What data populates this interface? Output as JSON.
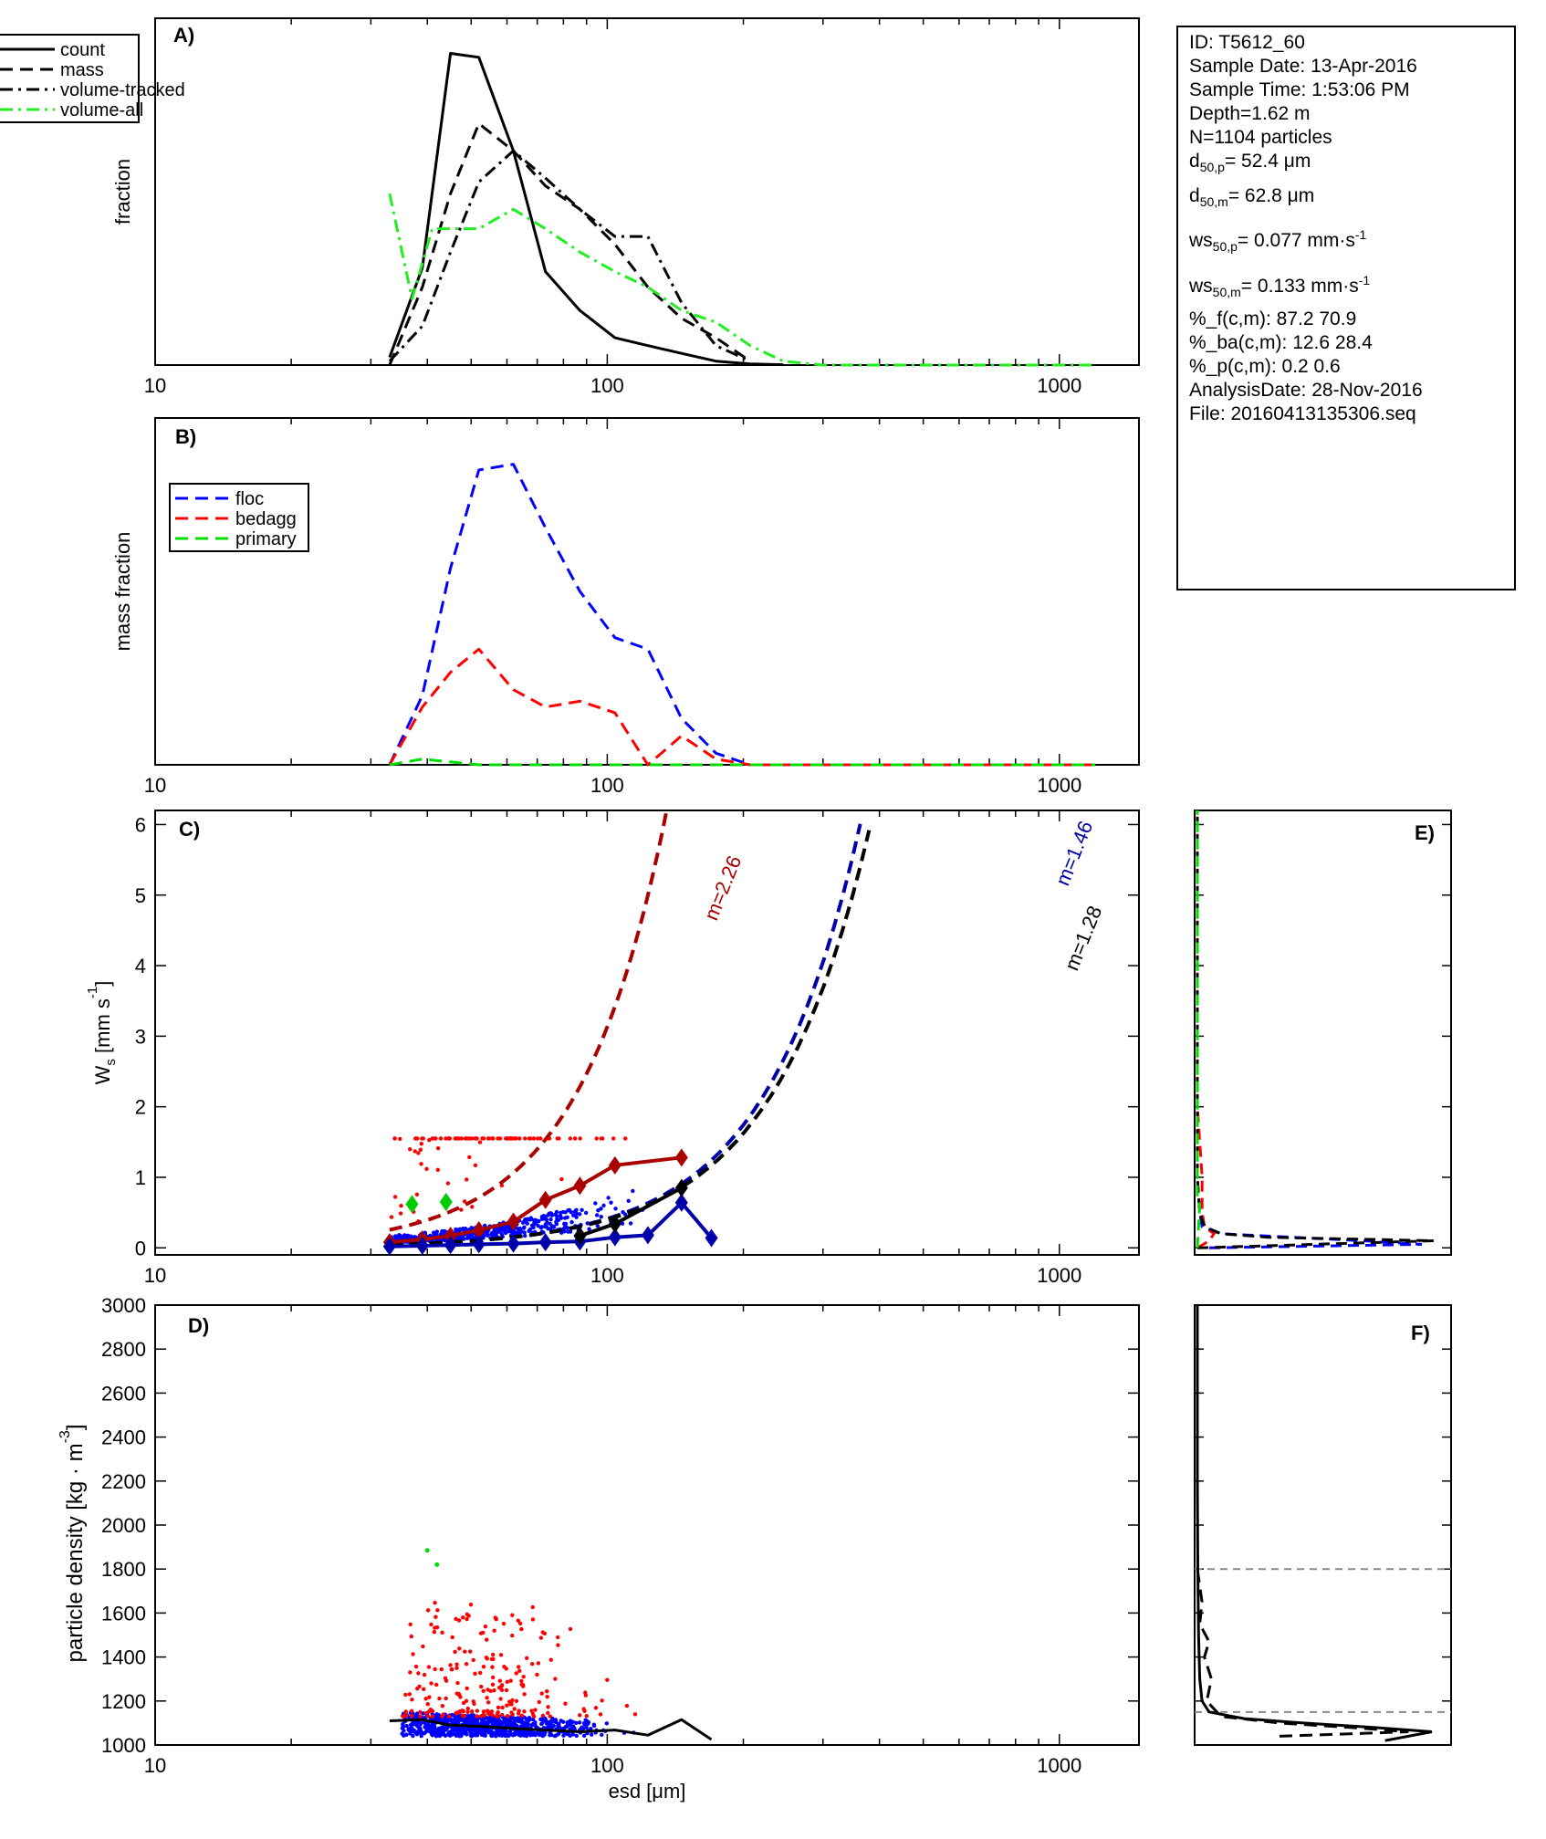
{
  "info_box": {
    "id": "ID: T5612_60",
    "sample_date": "Sample Date: 13-Apr-2016",
    "sample_time": "Sample Time:  1:53:06 PM",
    "depth": "Depth=1.62 m",
    "n": "N=1104 particles",
    "d50p_label": "d",
    "d50p_sub": "50,p",
    "d50p_value": "=  52.4 μm",
    "d50m_label": "d",
    "d50m_sub": "50,m",
    "d50m_value": "=  62.8 μm",
    "ws50p_label": "ws",
    "ws50p_sub": "50,p",
    "ws50p_value": "= 0.077 mm·s",
    "ws50p_sup": "-1",
    "ws50m_label": "ws",
    "ws50m_sub": "50,m",
    "ws50m_value": "= 0.133 mm·s",
    "ws50m_sup": "-1",
    "pct_f": "%_f(c,m): 87.2 70.9",
    "pct_ba": "%_ba(c,m): 12.6 28.4",
    "pct_p": "%_p(c,m): 0.2 0.6",
    "analysis_date": "AnalysisDate: 28-Nov-2016",
    "file": "File: 20160413135306.seq"
  },
  "colors": {
    "axis": "#000000",
    "floc": "#0000ff",
    "bedagg": "#ff0000",
    "primary": "#00dd00",
    "floc_dark": "#0000aa",
    "bedagg_dark": "#aa0000",
    "volume_all": "#22ee22",
    "ref_line": "#888888"
  },
  "chart_data": [
    {
      "panel": "A)",
      "type": "line",
      "ylabel": "fraction",
      "xscale": "log",
      "xlim": [
        10,
        1500
      ],
      "xticks": [
        "10",
        "100",
        "1000"
      ],
      "legend": [
        "count",
        "mass",
        "volume-tracked",
        "volume-all"
      ],
      "legend_position": "top-left",
      "series": [
        {
          "name": "count",
          "style": "solid",
          "color": "#000000",
          "x": [
            33,
            39,
            45,
            52,
            62,
            73,
            87,
            104,
            123,
            146,
            174,
            207,
            245
          ],
          "y": [
            0.02,
            0.25,
            0.8,
            0.79,
            0.55,
            0.24,
            0.14,
            0.07,
            0.05,
            0.03,
            0.01,
            0.003,
            0.001
          ]
        },
        {
          "name": "mass",
          "style": "dashed",
          "color": "#000000",
          "x": [
            33,
            39,
            45,
            52,
            62,
            73,
            87,
            104,
            123,
            146,
            174,
            207
          ],
          "y": [
            0.0,
            0.2,
            0.44,
            0.62,
            0.55,
            0.46,
            0.4,
            0.31,
            0.2,
            0.12,
            0.07,
            0.01
          ]
        },
        {
          "name": "volume-tracked",
          "style": "dashdot",
          "color": "#000000",
          "x": [
            33,
            39,
            45,
            52,
            62,
            73,
            87,
            104,
            123,
            146,
            174,
            207
          ],
          "y": [
            0.01,
            0.1,
            0.29,
            0.47,
            0.55,
            0.48,
            0.4,
            0.33,
            0.33,
            0.16,
            0.05,
            0.01
          ]
        },
        {
          "name": "volume-all",
          "style": "dashdot",
          "color": "#22ee22",
          "x": [
            33,
            37,
            41,
            45,
            52,
            62,
            73,
            87,
            104,
            123,
            146,
            174,
            207,
            245,
            300,
            400,
            600,
            800,
            1000,
            1200
          ],
          "y": [
            0.44,
            0.17,
            0.35,
            0.35,
            0.35,
            0.4,
            0.35,
            0.29,
            0.24,
            0.2,
            0.14,
            0.11,
            0.05,
            0.01,
            0.0,
            0.0,
            0.0,
            0.0,
            0.0,
            0.0
          ]
        }
      ]
    },
    {
      "panel": "B)",
      "type": "line",
      "ylabel": "mass fraction",
      "xscale": "log",
      "xlim": [
        10,
        1500
      ],
      "xticks": [
        "10",
        "100",
        "1000"
      ],
      "legend": [
        "floc",
        "bedagg",
        "primary"
      ],
      "legend_position": "top-left",
      "series": [
        {
          "name": "floc",
          "style": "dashed",
          "color": "#0000ff",
          "x": [
            33,
            39,
            45,
            52,
            62,
            73,
            87,
            104,
            123,
            146,
            174,
            207,
            300,
            1200
          ],
          "y": [
            0.0,
            0.12,
            0.34,
            0.51,
            0.52,
            0.41,
            0.3,
            0.22,
            0.2,
            0.08,
            0.02,
            0.0,
            0.0,
            0.0
          ]
        },
        {
          "name": "bedagg",
          "style": "dashed",
          "color": "#ff0000",
          "x": [
            33,
            39,
            45,
            52,
            62,
            73,
            87,
            104,
            123,
            146,
            174,
            207,
            300,
            1200
          ],
          "y": [
            0.0,
            0.1,
            0.16,
            0.2,
            0.13,
            0.1,
            0.11,
            0.09,
            0.0,
            0.05,
            0.01,
            0.0,
            0.0,
            0.0
          ]
        },
        {
          "name": "primary",
          "style": "dashed",
          "color": "#00dd00",
          "x": [
            33,
            39,
            45,
            52,
            62,
            100,
            200,
            400,
            800,
            1200
          ],
          "y": [
            0.0,
            0.01,
            0.005,
            0.0,
            0.0,
            0.0,
            0.0,
            0.0,
            0.0,
            0.0
          ]
        }
      ]
    },
    {
      "panel": "C)",
      "type": "scatter",
      "ylabel": "W",
      "ylabel_sub": "s",
      "ylabel_tail": " [mm s",
      "ylabel_sup": "-1",
      "ylabel_end": "]",
      "xscale": "log",
      "xlim": [
        10,
        1500
      ],
      "ylim": [
        -0.1,
        6.2
      ],
      "xticks": [
        "10",
        "100",
        "1000"
      ],
      "yticks": [
        "0",
        "1",
        "2",
        "3",
        "4",
        "5",
        "6"
      ],
      "fit_labels": [
        "m=2.26",
        "m=1.46",
        "m=1.28"
      ],
      "fits": [
        {
          "label": "m=2.26",
          "color": "#aa0000",
          "a": 0.004,
          "m": 2.26,
          "x_range": [
            33,
            210
          ]
        },
        {
          "label": "m=1.46",
          "color": "#0000aa",
          "a": 0.00051,
          "m": 1.46,
          "x_range": [
            33,
            1230
          ]
        },
        {
          "label": "m=1.28",
          "color": "#000000",
          "a": 0.0011,
          "m": 1.28,
          "x_range": [
            33,
            1230
          ]
        }
      ],
      "binned": [
        {
          "group": "bedagg",
          "color": "#aa0000",
          "x": [
            33,
            39,
            45,
            52,
            62,
            73,
            87,
            104,
            146
          ],
          "y": [
            0.08,
            0.12,
            0.17,
            0.25,
            0.37,
            0.68,
            0.88,
            1.17,
            1.28
          ]
        },
        {
          "group": "floc",
          "color": "#0000aa",
          "x": [
            33,
            39,
            45,
            52,
            62,
            73,
            87,
            104,
            123,
            146,
            170
          ],
          "y": [
            0.02,
            0.03,
            0.04,
            0.05,
            0.06,
            0.08,
            0.09,
            0.15,
            0.18,
            0.64,
            0.14
          ]
        },
        {
          "group": "all",
          "color": "#000000",
          "x": [
            87,
            104,
            146
          ],
          "y": [
            0.17,
            0.34,
            0.85
          ]
        },
        {
          "group": "primary",
          "color": "#00cc00",
          "x": [
            37,
            44
          ],
          "y": [
            0.62,
            0.65
          ]
        }
      ]
    },
    {
      "panel": "D)",
      "type": "scatter",
      "xlabel": "esd [μm]",
      "ylabel": "particle density [kg · m",
      "ylabel_sup": "-3",
      "ylabel_end": "]",
      "xscale": "log",
      "xlim": [
        10,
        1500
      ],
      "ylim": [
        1000,
        3000
      ],
      "xticks": [
        "10",
        "100",
        "1000"
      ],
      "yticks": [
        "1000",
        "1200",
        "1400",
        "1600",
        "1800",
        "2000",
        "2200",
        "2400",
        "2600",
        "2800",
        "3000"
      ],
      "median_line": {
        "x": [
          33,
          39,
          45,
          52,
          62,
          73,
          87,
          104,
          123,
          146,
          170
        ],
        "y": [
          1110,
          1115,
          1090,
          1085,
          1075,
          1068,
          1060,
          1068,
          1045,
          1115,
          1025
        ]
      },
      "primary_points": {
        "x": [
          40,
          42
        ],
        "y": [
          1885,
          1820
        ]
      }
    },
    {
      "panel": "E)",
      "type": "line",
      "note": "Ws distribution (side histogram)",
      "series": [
        {
          "name": "floc",
          "color": "#0000ff",
          "style": "dashed",
          "y": [
            0,
            0.05,
            0.1,
            0.2,
            0.3,
            0.5,
            1.0,
            2.0,
            6.2
          ],
          "x": [
            0.05,
            0.95,
            0.7,
            0.1,
            0.02,
            0.01,
            0.0,
            0.0,
            0.0
          ]
        },
        {
          "name": "bedagg",
          "color": "#ff0000",
          "style": "dashed",
          "y": [
            0,
            0.1,
            0.2,
            0.3,
            0.5,
            1.0,
            1.5,
            2.0,
            6.2
          ],
          "x": [
            0.0,
            0.05,
            0.07,
            0.03,
            0.02,
            0.02,
            0.01,
            0.0,
            0.0
          ]
        },
        {
          "name": "all",
          "color": "#000000",
          "style": "dashed",
          "y": [
            0,
            0.1,
            0.15,
            0.2,
            0.3,
            0.5,
            1.0,
            2.0,
            6.2
          ],
          "x": [
            0.0,
            1.0,
            0.3,
            0.1,
            0.03,
            0.01,
            0.0,
            0.0,
            0.0
          ]
        },
        {
          "name": "primary",
          "color": "#00dd00",
          "style": "dashed",
          "y": [
            0,
            0.6,
            0.7,
            6.2
          ],
          "x": [
            0.0,
            0.01,
            0.0,
            0.0
          ]
        }
      ]
    },
    {
      "panel": "F)",
      "type": "line",
      "note": "density distribution (side histogram)",
      "ref_lines": [
        1150,
        1800
      ],
      "series": [
        {
          "name": "count",
          "style": "solid",
          "color": "#000000",
          "y": [
            1020,
            1060,
            1080,
            1100,
            1120,
            1150,
            1200,
            1300,
            1500,
            1800,
            2200,
            3000
          ],
          "x": [
            0.8,
            1.0,
            0.75,
            0.45,
            0.2,
            0.05,
            0.02,
            0.01,
            0.005,
            0.002,
            0.0,
            0.0
          ]
        },
        {
          "name": "mass",
          "style": "dashed",
          "color": "#000000",
          "y": [
            1040,
            1060,
            1080,
            1100,
            1130,
            1200,
            1300,
            1400,
            1470,
            1550,
            1650,
            1800
          ],
          "x": [
            0.35,
            0.9,
            0.65,
            0.35,
            0.1,
            0.04,
            0.06,
            0.03,
            0.05,
            0.01,
            0.02,
            0.0
          ]
        }
      ]
    }
  ]
}
